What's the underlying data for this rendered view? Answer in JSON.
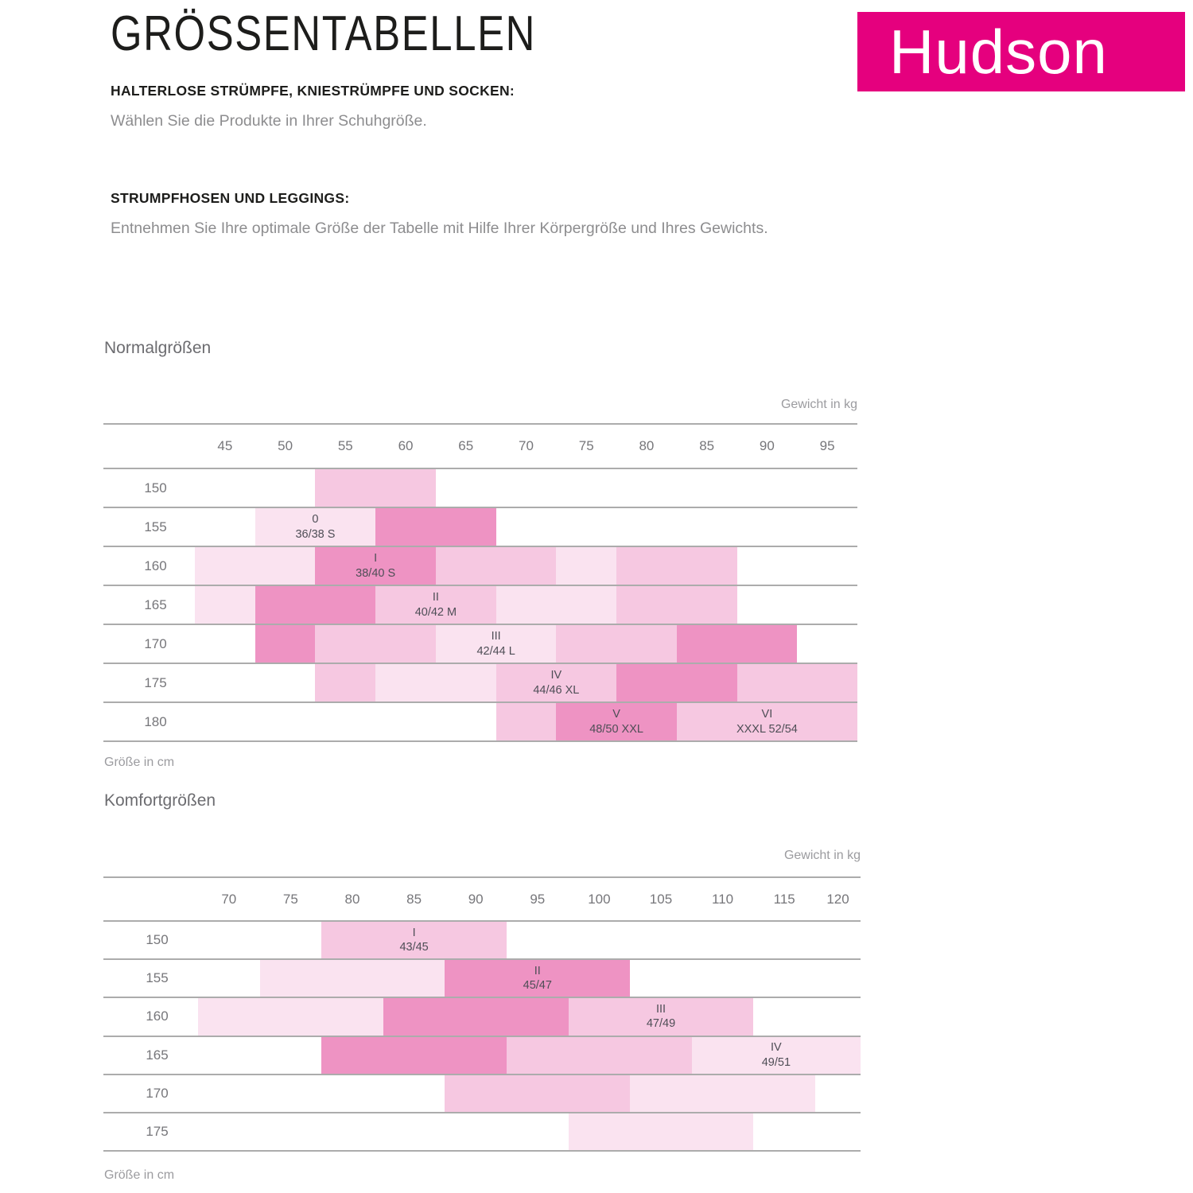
{
  "colors": {
    "light": "#FAE3F0",
    "medium": "#F6C8E1",
    "dark": "#EE93C3",
    "logo": "#E5007E",
    "line": "#ACACAC"
  },
  "header": {
    "title": "GRÖSSENTABELLEN",
    "logo": "Hudson",
    "sections": [
      {
        "heading": "HALTERLOSE STRÜMPFE, KNIESTRÜMPFE UND SOCKEN:",
        "body": "Wählen Sie die Produkte in Ihrer Schuhgröße."
      },
      {
        "heading": "STRUMPFHOSEN UND LEGGINGS:",
        "body": "Entnehmen Sie Ihre optimale Größe der Tabelle mit Hilfe Ihrer Körpergröße und Ihres Gewichts."
      }
    ]
  },
  "chart_data": [
    {
      "type": "heatmap",
      "title": "Normalgrößen",
      "xlabel": "Gewicht in kg",
      "ylabel": "Größe in cm",
      "x": [
        45,
        50,
        55,
        60,
        65,
        70,
        75,
        80,
        85,
        90,
        95
      ],
      "y": [
        150,
        155,
        160,
        165,
        170,
        175,
        180
      ],
      "bands": [
        {
          "row": 150,
          "from": 55,
          "to": 60,
          "shade": "medium"
        },
        {
          "row": 155,
          "from": 50,
          "to": 55,
          "shade": "light",
          "size": "0",
          "label": "36/38 S"
        },
        {
          "row": 155,
          "from": 60,
          "to": 65,
          "shade": "dark"
        },
        {
          "row": 160,
          "from": 45,
          "to": 50,
          "shade": "light"
        },
        {
          "row": 160,
          "from": 55,
          "to": 60,
          "shade": "dark",
          "size": "I",
          "label": "38/40 S"
        },
        {
          "row": 160,
          "from": 65,
          "to": 70,
          "shade": "medium"
        },
        {
          "row": 160,
          "from": 75,
          "to": 75,
          "shade": "light"
        },
        {
          "row": 160,
          "from": 80,
          "to": 85,
          "shade": "medium"
        },
        {
          "row": 165,
          "from": 45,
          "to": 45,
          "shade": "light"
        },
        {
          "row": 165,
          "from": 50,
          "to": 55,
          "shade": "dark"
        },
        {
          "row": 165,
          "from": 60,
          "to": 65,
          "shade": "medium",
          "size": "II",
          "label": "40/42 M"
        },
        {
          "row": 165,
          "from": 70,
          "to": 75,
          "shade": "light"
        },
        {
          "row": 165,
          "from": 80,
          "to": 85,
          "shade": "medium"
        },
        {
          "row": 170,
          "from": 50,
          "to": 50,
          "shade": "dark"
        },
        {
          "row": 170,
          "from": 55,
          "to": 60,
          "shade": "medium"
        },
        {
          "row": 170,
          "from": 65,
          "to": 70,
          "shade": "light",
          "size": "III",
          "label": "42/44 L"
        },
        {
          "row": 170,
          "from": 75,
          "to": 80,
          "shade": "medium"
        },
        {
          "row": 170,
          "from": 85,
          "to": 90,
          "shade": "dark"
        },
        {
          "row": 175,
          "from": 55,
          "to": 55,
          "shade": "medium"
        },
        {
          "row": 175,
          "from": 60,
          "to": 65,
          "shade": "light"
        },
        {
          "row": 175,
          "from": 70,
          "to": 75,
          "shade": "medium",
          "size": "IV",
          "label": "44/46 XL"
        },
        {
          "row": 175,
          "from": 80,
          "to": 85,
          "shade": "dark"
        },
        {
          "row": 175,
          "from": 90,
          "to": 95,
          "shade": "medium"
        },
        {
          "row": 180,
          "from": 70,
          "to": 70,
          "shade": "medium"
        },
        {
          "row": 180,
          "from": 75,
          "to": 80,
          "shade": "dark",
          "size": "V",
          "label": "48/50 XXL"
        },
        {
          "row": 180,
          "from": 85,
          "to": 95,
          "shade": "medium",
          "size": "VI",
          "label": "XXXL 52/54"
        }
      ]
    },
    {
      "type": "heatmap",
      "title": "Komfortgrößen",
      "xlabel": "Gewicht in kg",
      "ylabel": "Größe in cm",
      "x": [
        70,
        75,
        80,
        85,
        90,
        95,
        100,
        105,
        110,
        115,
        120
      ],
      "y": [
        150,
        155,
        160,
        165,
        170,
        175
      ],
      "bands": [
        {
          "row": 150,
          "from": 80,
          "to": 90,
          "shade": "medium",
          "size": "I",
          "label": "43/45"
        },
        {
          "row": 155,
          "from": 75,
          "to": 85,
          "shade": "light"
        },
        {
          "row": 155,
          "from": 90,
          "to": 100,
          "shade": "dark",
          "size": "II",
          "label": "45/47"
        },
        {
          "row": 160,
          "from": 70,
          "to": 80,
          "shade": "light"
        },
        {
          "row": 160,
          "from": 85,
          "to": 95,
          "shade": "dark"
        },
        {
          "row": 160,
          "from": 100,
          "to": 110,
          "shade": "medium",
          "size": "III",
          "label": "47/49"
        },
        {
          "row": 165,
          "from": 80,
          "to": 90,
          "shade": "dark"
        },
        {
          "row": 165,
          "from": 95,
          "to": 105,
          "shade": "medium"
        },
        {
          "row": 165,
          "from": 110,
          "to": 120,
          "shade": "light",
          "size": "IV",
          "label": "49/51"
        },
        {
          "row": 170,
          "from": 90,
          "to": 100,
          "shade": "medium"
        },
        {
          "row": 170,
          "from": 105,
          "to": 115,
          "shade": "light"
        },
        {
          "row": 175,
          "from": 100,
          "to": 110,
          "shade": "light"
        }
      ]
    }
  ]
}
